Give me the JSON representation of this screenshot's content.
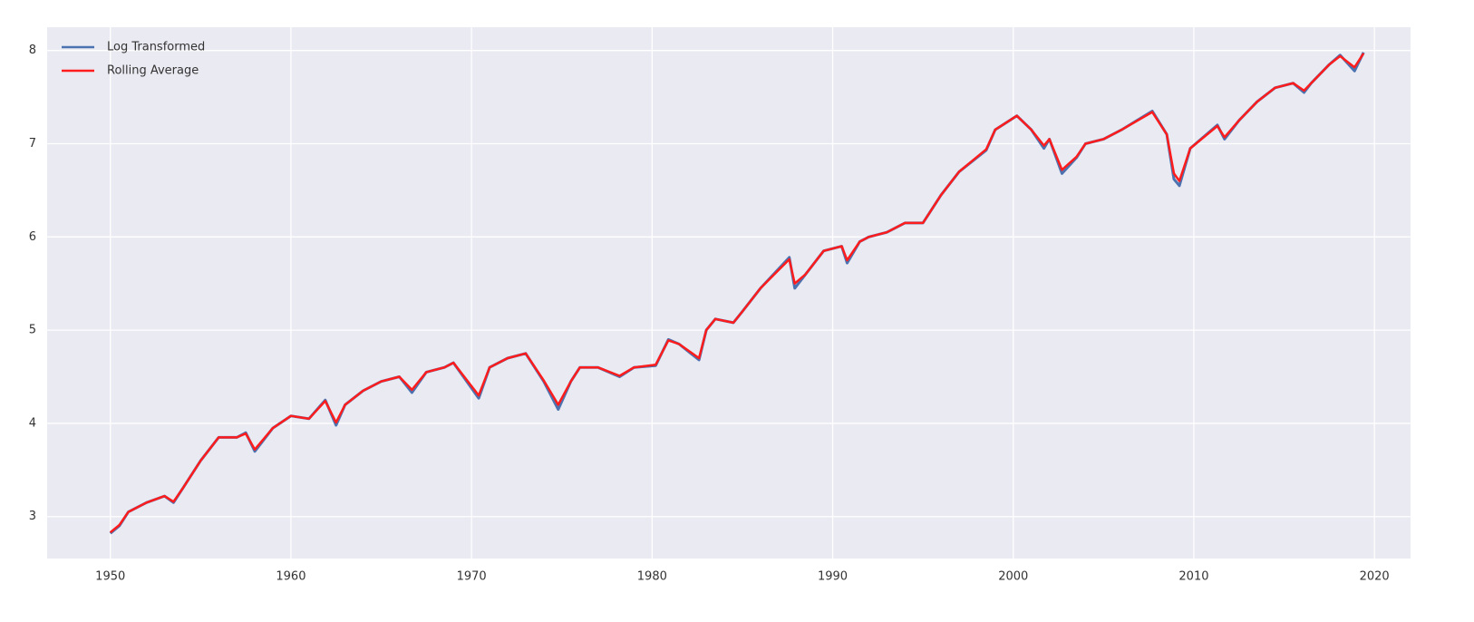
{
  "chart_data": {
    "type": "line",
    "x": [
      1950,
      1950.5,
      1951,
      1952,
      1953,
      1953.5,
      1954,
      1955,
      1956,
      1957,
      1957.5,
      1958,
      1959,
      1960,
      1961,
      1961.9,
      1962.5,
      1963,
      1964,
      1965,
      1966,
      1966.7,
      1967.5,
      1968.5,
      1969,
      1970.4,
      1971,
      1972,
      1973,
      1974,
      1974.8,
      1975.5,
      1976,
      1977,
      1978.2,
      1979,
      1980.2,
      1980.9,
      1981.5,
      1982.6,
      1983,
      1983.5,
      1984.5,
      1985,
      1986,
      1987.6,
      1987.9,
      1988.5,
      1989.5,
      1990.5,
      1990.8,
      1991.5,
      1992,
      1993,
      1994,
      1995,
      1996,
      1997,
      1998.5,
      1999,
      2000.2,
      2001,
      2001.7,
      2002,
      2002.7,
      2003.5,
      2004,
      2005,
      2006,
      2007.7,
      2008.5,
      2008.9,
      2009.2,
      2009.8,
      2011.3,
      2011.7,
      2012.5,
      2013.5,
      2014.5,
      2015.5,
      2016.1,
      2016.5,
      2017.5,
      2018.1,
      2018.9,
      2019.4
    ],
    "series": [
      {
        "name": "Log Transformed",
        "color": "#4c72b0",
        "values": [
          2.82,
          2.9,
          3.05,
          3.15,
          3.22,
          3.15,
          3.3,
          3.6,
          3.85,
          3.85,
          3.9,
          3.7,
          3.95,
          4.08,
          4.05,
          4.25,
          3.98,
          4.2,
          4.35,
          4.45,
          4.5,
          4.33,
          4.55,
          4.6,
          4.65,
          4.27,
          4.6,
          4.7,
          4.75,
          4.45,
          4.15,
          4.45,
          4.6,
          4.6,
          4.5,
          4.6,
          4.62,
          4.9,
          4.85,
          4.68,
          5.0,
          5.12,
          5.08,
          5.2,
          5.45,
          5.78,
          5.45,
          5.6,
          5.85,
          5.9,
          5.72,
          5.95,
          6.0,
          6.05,
          6.15,
          6.15,
          6.45,
          6.7,
          6.93,
          7.15,
          7.3,
          7.15,
          6.95,
          7.05,
          6.68,
          6.85,
          7.0,
          7.05,
          7.15,
          7.35,
          7.1,
          6.62,
          6.55,
          6.95,
          7.2,
          7.05,
          7.25,
          7.45,
          7.6,
          7.65,
          7.55,
          7.65,
          7.85,
          7.95,
          7.78,
          7.98
        ]
      },
      {
        "name": "Rolling Average",
        "color": "#ff1c1c",
        "values": [
          2.83,
          2.91,
          3.05,
          3.15,
          3.22,
          3.16,
          3.3,
          3.6,
          3.85,
          3.85,
          3.89,
          3.72,
          3.95,
          4.08,
          4.05,
          4.24,
          4.01,
          4.2,
          4.35,
          4.45,
          4.5,
          4.36,
          4.55,
          4.6,
          4.65,
          4.3,
          4.6,
          4.7,
          4.75,
          4.46,
          4.2,
          4.45,
          4.6,
          4.6,
          4.51,
          4.6,
          4.63,
          4.89,
          4.85,
          4.7,
          5.0,
          5.12,
          5.08,
          5.2,
          5.45,
          5.76,
          5.5,
          5.6,
          5.85,
          5.9,
          5.75,
          5.95,
          6.0,
          6.05,
          6.15,
          6.15,
          6.45,
          6.7,
          6.94,
          7.15,
          7.3,
          7.15,
          6.98,
          7.05,
          6.72,
          6.86,
          7.0,
          7.05,
          7.15,
          7.34,
          7.1,
          6.68,
          6.6,
          6.95,
          7.19,
          7.07,
          7.25,
          7.45,
          7.6,
          7.65,
          7.57,
          7.65,
          7.85,
          7.94,
          7.82,
          7.97
        ]
      }
    ],
    "xlim": [
      1946.5,
      2022
    ],
    "xticks": [
      1950,
      1960,
      1970,
      1980,
      1990,
      2000,
      2010,
      2020
    ],
    "ylim": [
      2.55,
      8.25
    ],
    "yticks": [
      3,
      4,
      5,
      6,
      7,
      8
    ],
    "grid": true,
    "legend": "upper-left"
  }
}
